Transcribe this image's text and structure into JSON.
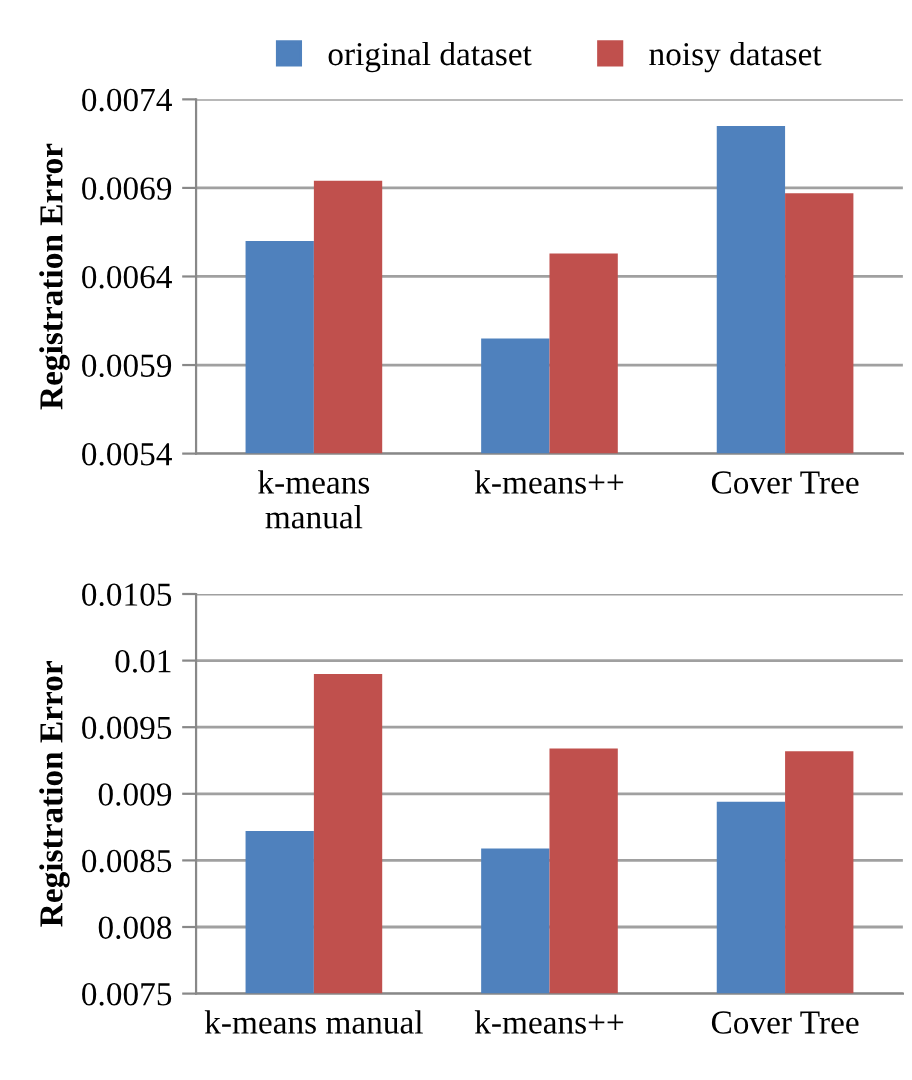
{
  "chart_data": [
    {
      "type": "bar",
      "ylabel": "Registration Error",
      "categories": [
        "k-means\nmanual",
        "k-means++",
        "Cover Tree"
      ],
      "series": [
        {
          "name": "original dataset",
          "color": "#4f81bd",
          "values": [
            0.0066,
            0.00605,
            0.00725
          ]
        },
        {
          "name": "noisy dataset",
          "color": "#c0504d",
          "values": [
            0.00694,
            0.00653,
            0.00687
          ]
        }
      ],
      "ylim": [
        0.0054,
        0.0074
      ],
      "yticks": [
        0.0054,
        0.0059,
        0.0064,
        0.0069,
        0.0074
      ],
      "grid": "y",
      "legend": "top"
    },
    {
      "type": "bar",
      "ylabel": "Registration Error",
      "categories": [
        "k-means manual",
        "k-means++",
        "Cover Tree"
      ],
      "series": [
        {
          "color": "#4f81bd",
          "values": [
            0.00872,
            0.00859,
            0.00894
          ]
        },
        {
          "color": "#c0504d",
          "values": [
            0.0099,
            0.00934,
            0.00932
          ]
        }
      ],
      "ylim": [
        0.0075,
        0.0105
      ],
      "yticks": [
        0.0075,
        0.008,
        0.0085,
        0.009,
        0.0095,
        0.01,
        0.0105
      ],
      "grid": "y"
    }
  ]
}
